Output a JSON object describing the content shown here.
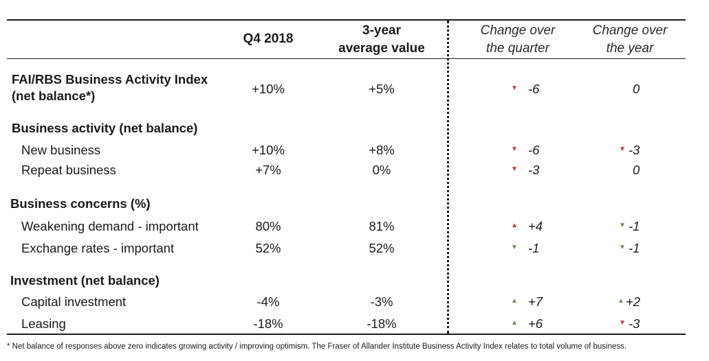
{
  "headers": {
    "q4": "Q4 2018",
    "avg_line1": "3-year",
    "avg_line2": "average value",
    "chg_q_line1": "Change over",
    "chg_q_line2": "the quarter",
    "chg_y_line1": "Change over",
    "chg_y_line2": "the year"
  },
  "rows": [
    {
      "label_line1": "FAI/RBS Business Activity Index",
      "label_line2": "(net balance*)",
      "q4": "+10%",
      "avg": "+5%",
      "chg_q": "-6",
      "chg_q_dir": "down",
      "chg_q_color": "#d9302a",
      "chg_y": "0"
    },
    {
      "label": "Business activity (net balance)"
    },
    {
      "label": "New business",
      "q4": "+10%",
      "avg": "+8%",
      "chg_q": "-6",
      "chg_q_dir": "down",
      "chg_q_color": "#d9302a",
      "chg_y": "-3",
      "chg_y_dir": "down",
      "chg_y_color": "#d9302a"
    },
    {
      "label": "Repeat business",
      "q4": "+7%",
      "avg": "0%",
      "chg_q": "-3",
      "chg_q_dir": "down",
      "chg_q_color": "#d9302a",
      "chg_y": "0"
    },
    {
      "label": "Business concerns (%)"
    },
    {
      "label": "Weakening demand - important",
      "q4": "80%",
      "avg": "81%",
      "chg_q": "+4",
      "chg_q_dir": "up",
      "chg_q_color": "#d9302a",
      "chg_y": "-1",
      "chg_y_dir": "down",
      "chg_y_color": "#6a8d4e"
    },
    {
      "label": "Exchange rates - important",
      "q4": "52%",
      "avg": "52%",
      "chg_q": "-1",
      "chg_q_dir": "down",
      "chg_q_color": "#6a8d4e",
      "chg_y": "-1",
      "chg_y_dir": "down",
      "chg_y_color": "#6a8d4e"
    },
    {
      "label": "Investment (net balance)"
    },
    {
      "label": "Capital investment",
      "q4": "-4%",
      "avg": "-3%",
      "chg_q": "+7",
      "chg_q_dir": "up",
      "chg_q_color": "#6a8d4e",
      "chg_y": "+2",
      "chg_y_dir": "up",
      "chg_y_color": "#6a8d4e"
    },
    {
      "label": "Leasing",
      "q4": "-18%",
      "avg": "-18%",
      "chg_q": "+6",
      "chg_q_dir": "up",
      "chg_q_color": "#6a8d4e",
      "chg_y": "-3",
      "chg_y_dir": "down",
      "chg_y_color": "#d9302a"
    }
  ],
  "footnote": "* Net balance of responses above zero indicates growing activity / improving optimism. The Fraser of Allander Institute Business Activity Index relates to total volume of business."
}
